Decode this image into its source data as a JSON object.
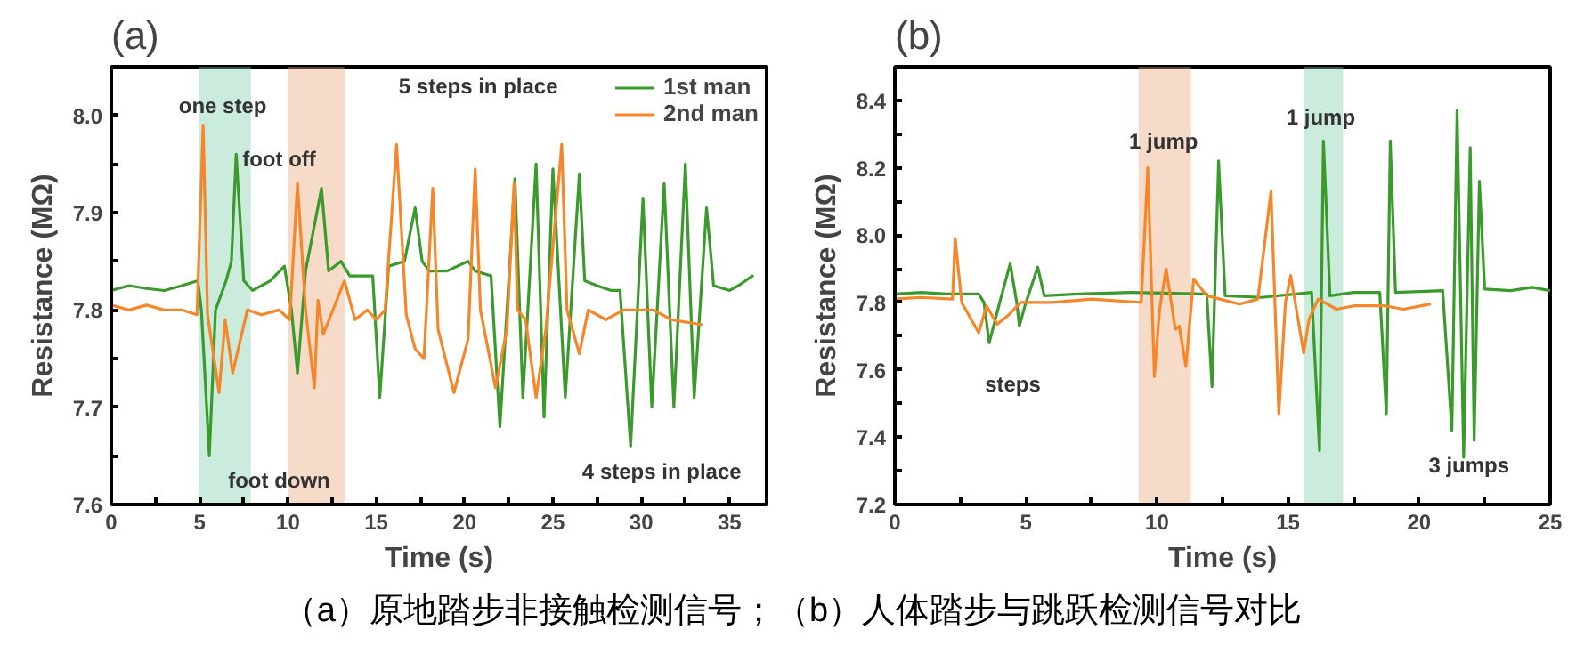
{
  "chart_data": [
    {
      "type": "line",
      "title": "(a)",
      "xlabel": "Time (s)",
      "ylabel": "Resistance (MΩ)",
      "xlim": [
        0,
        37.1
      ],
      "ylim": [
        7.6,
        8.05
      ],
      "xticks": [
        0,
        {
          "value": 2.5,
          "label": null
        },
        5,
        {
          "value": 7.5,
          "label": null
        },
        10,
        {
          "value": 12.5,
          "label": null
        },
        15,
        {
          "value": 17.5,
          "label": null
        },
        20,
        {
          "value": 22.5,
          "label": null
        },
        25,
        {
          "value": 27.5,
          "label": null
        },
        30,
        {
          "value": 32.5,
          "label": null
        },
        35
      ],
      "yticks": [
        7.6,
        {
          "value": 7.65,
          "label": null
        },
        7.7,
        {
          "value": 7.75,
          "label": null
        },
        7.8,
        {
          "value": 7.85,
          "label": null
        },
        7.9,
        {
          "value": 7.95,
          "label": null
        },
        {
          "value": 8.0,
          "label": "8.0"
        }
      ],
      "legend": "top right",
      "grid": false,
      "marker": "none",
      "line_style": "solid",
      "bands": [
        {
          "axis": "x",
          "from": 4.95,
          "to": 7.9,
          "color": "#7dcfa8"
        },
        {
          "axis": "x",
          "from": 10.0,
          "to": 13.2,
          "color": "#e9a679"
        }
      ],
      "annotations": [
        {
          "text": "foot off",
          "x": 9.5,
          "y": 7.955
        },
        {
          "text": "foot down",
          "x": 9.5,
          "y": 7.625
        },
        "one step",
        "5 steps in place",
        "4 steps in place"
      ],
      "series": [
        {
          "name": "1st man",
          "color": "#3a9a2c",
          "x": [
            0,
            1,
            2,
            3,
            4,
            4.9,
            5.1,
            5.55,
            5.9,
            6.5,
            6.8,
            7.07,
            7.5,
            8,
            9,
            9.8,
            10.2,
            10.54,
            11,
            11.9,
            12.3,
            13,
            13.5,
            14.8,
            15.2,
            15.7,
            16.6,
            17.2,
            17.6,
            18,
            19,
            20.2,
            20.6,
            21.5,
            22.0,
            22.85,
            23.3,
            24.05,
            24.5,
            25.0,
            25.7,
            26.5,
            26.8,
            27.5,
            28.3,
            28.8,
            29.4,
            30.1,
            30.6,
            31.3,
            31.85,
            32.5,
            33.0,
            33.7,
            34.1,
            35,
            35.5,
            36.3
          ],
          "values": [
            7.82,
            7.825,
            7.822,
            7.82,
            7.825,
            7.83,
            7.8,
            7.65,
            7.8,
            7.83,
            7.85,
            7.96,
            7.83,
            7.82,
            7.83,
            7.845,
            7.8,
            7.735,
            7.84,
            7.925,
            7.84,
            7.85,
            7.835,
            7.835,
            7.71,
            7.845,
            7.85,
            7.905,
            7.85,
            7.84,
            7.84,
            7.85,
            7.84,
            7.835,
            7.68,
            7.935,
            7.71,
            7.95,
            7.69,
            7.945,
            7.71,
            7.94,
            7.83,
            7.825,
            7.82,
            7.82,
            7.66,
            7.915,
            7.7,
            7.93,
            7.7,
            7.95,
            7.71,
            7.905,
            7.825,
            7.82,
            7.825,
            7.835
          ]
        },
        {
          "name": "2nd man",
          "color": "#f5862a",
          "x": [
            0,
            1,
            2,
            3,
            4,
            4.85,
            5.2,
            5.45,
            6.1,
            6.45,
            6.87,
            7.7,
            8.5,
            9.5,
            10.1,
            10.54,
            11.0,
            11.5,
            11.7,
            12,
            13.2,
            13.8,
            14.5,
            15,
            15.5,
            16.15,
            16.7,
            17.2,
            17.7,
            18.2,
            18.5,
            19.4,
            20.2,
            20.6,
            20.9,
            21.75,
            22.4,
            22.8,
            23.0,
            23.45,
            24.05,
            24.6,
            25.5,
            25.8,
            26.5,
            27.0,
            28.0,
            29.0,
            30.7,
            31.7,
            33.4
          ],
          "values": [
            7.805,
            7.8,
            7.805,
            7.8,
            7.8,
            7.795,
            7.99,
            7.795,
            7.715,
            7.79,
            7.735,
            7.8,
            7.795,
            7.8,
            7.79,
            7.93,
            7.8,
            7.72,
            7.81,
            7.775,
            7.83,
            7.79,
            7.8,
            7.79,
            7.8,
            7.97,
            7.795,
            7.76,
            7.75,
            7.925,
            7.78,
            7.715,
            7.77,
            7.945,
            7.8,
            7.72,
            7.78,
            7.93,
            7.8,
            7.79,
            7.71,
            7.78,
            7.97,
            7.8,
            7.755,
            7.8,
            7.79,
            7.8,
            7.8,
            7.79,
            7.785
          ]
        }
      ]
    },
    {
      "type": "line",
      "title": "(b)",
      "xlabel": "Time (s)",
      "ylabel": "Resistance (MΩ)",
      "xlim": [
        0,
        25
      ],
      "ylim": [
        7.2,
        8.5
      ],
      "xticks": [
        0,
        {
          "value": 2.5,
          "label": null
        },
        5,
        {
          "value": 7.5,
          "label": null
        },
        10,
        {
          "value": 12.5,
          "label": null
        },
        15,
        {
          "value": 17.5,
          "label": null
        },
        20,
        {
          "value": 22.5,
          "label": null
        },
        25
      ],
      "yticks": [
        {
          "value": 7.2,
          "label": "7.2"
        },
        {
          "value": 7.3,
          "label": null
        },
        {
          "value": 7.4,
          "label": "7.4"
        },
        {
          "value": 7.5,
          "label": null
        },
        {
          "value": 7.6,
          "label": "7.6"
        },
        {
          "value": 7.7,
          "label": null
        },
        {
          "value": 7.8,
          "label": "7.8"
        },
        {
          "value": 7.9,
          "label": null
        },
        {
          "value": 8.0,
          "label": "8.0"
        },
        {
          "value": 8.1,
          "label": null
        },
        {
          "value": 8.2,
          "label": "8.2"
        },
        {
          "value": 8.3,
          "label": null
        },
        {
          "value": 8.4,
          "label": "8.4"
        }
      ],
      "grid": false,
      "marker": "none",
      "line_style": "solid",
      "bands": [
        {
          "axis": "x",
          "from": 9.3,
          "to": 11.3,
          "color": "#e9a679"
        },
        {
          "axis": "x",
          "from": 15.6,
          "to": 17.1,
          "color": "#7dcfa8"
        }
      ],
      "annotations": [
        "steps",
        "1 jump",
        "1 jump",
        "3 jumps",
        "（a）原地踏步非接触检测信号；（b）人体踏步与跳跃检测信号对比"
      ],
      "series": [
        {
          "color": "#3a9a2c",
          "x": [
            0,
            1,
            2,
            3.2,
            3.4,
            3.6,
            4.0,
            4.4,
            4.65,
            4.75,
            5.0,
            5.45,
            5.7,
            7,
            9,
            11.9,
            12.1,
            12.35,
            12.6,
            14,
            15.9,
            16.2,
            16.35,
            16.6,
            17.5,
            18.5,
            18.75,
            18.9,
            19.1,
            20.9,
            21.25,
            21.45,
            21.7,
            21.95,
            22.1,
            22.3,
            22.5,
            23.5,
            24.3,
            25
          ],
          "values": [
            7.825,
            7.83,
            7.825,
            7.825,
            7.8,
            7.68,
            7.8,
            7.915,
            7.8,
            7.73,
            7.8,
            7.905,
            7.82,
            7.825,
            7.83,
            7.825,
            7.55,
            8.22,
            7.82,
            7.815,
            7.83,
            7.36,
            8.28,
            7.82,
            7.83,
            7.83,
            7.47,
            8.28,
            7.83,
            7.835,
            7.42,
            8.37,
            7.34,
            8.26,
            7.39,
            8.16,
            7.84,
            7.835,
            7.845,
            7.835
          ]
        },
        {
          "color": "#f5862a",
          "x": [
            0,
            1,
            2.2,
            2.3,
            2.55,
            3.2,
            3.5,
            3.9,
            4.3,
            4.8,
            6,
            7.5,
            9.4,
            9.65,
            9.9,
            10.1,
            10.35,
            10.7,
            10.85,
            11.1,
            11.4,
            11.9,
            13.15,
            13.85,
            14.35,
            14.65,
            14.9,
            15.1,
            15.6,
            15.8,
            16.15,
            16.85,
            17.5,
            18.7,
            19.4,
            20.4
          ],
          "values": [
            7.81,
            7.815,
            7.81,
            7.99,
            7.8,
            7.71,
            7.79,
            7.735,
            7.76,
            7.8,
            7.8,
            7.81,
            7.8,
            8.2,
            7.58,
            7.78,
            7.9,
            7.72,
            7.73,
            7.61,
            7.87,
            7.82,
            7.795,
            7.81,
            8.13,
            7.47,
            7.8,
            7.88,
            7.65,
            7.75,
            7.81,
            7.78,
            7.79,
            7.79,
            7.78,
            7.795
          ]
        }
      ]
    }
  ]
}
